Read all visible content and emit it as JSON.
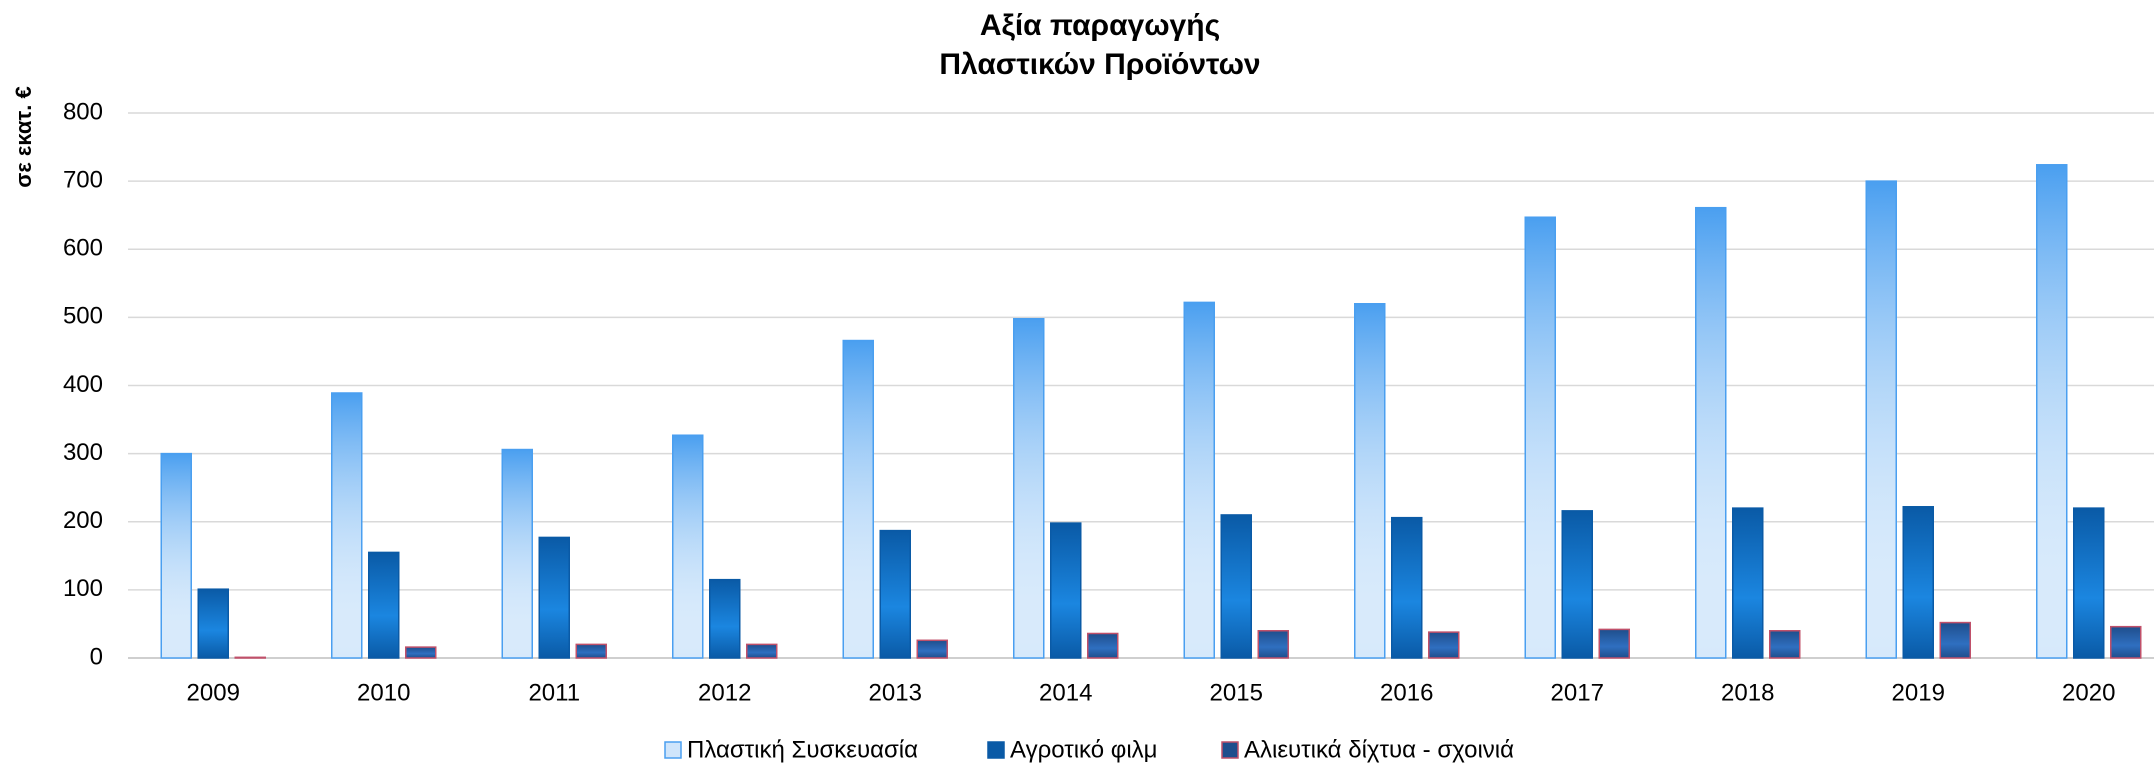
{
  "chart_data": {
    "type": "bar",
    "title": [
      "Αξία παραγωγής",
      "Πλαστικών Προϊόντων"
    ],
    "y_label": "σε εκατ. €",
    "categories": [
      "2009",
      "2010",
      "2011",
      "2012",
      "2013",
      "2014",
      "2015",
      "2016",
      "2017",
      "2018",
      "2019",
      "2020"
    ],
    "series": [
      {
        "name": "Πλαστική Συσκευασία",
        "color": "#4a9ff0",
        "values": [
          300,
          389,
          306,
          327,
          466,
          498,
          522,
          520,
          647,
          661,
          700,
          724
        ]
      },
      {
        "name": "Αγροτικό φιλμ",
        "color": "#0a5aa6",
        "values": [
          101,
          155,
          177,
          115,
          187,
          198,
          210,
          206,
          216,
          220,
          222,
          220
        ]
      },
      {
        "name": "Αλιευτικά δίχτυα - σχοινιά",
        "color": "#1f4e8c",
        "values": [
          1,
          16,
          20,
          20,
          26,
          36,
          40,
          38,
          42,
          40,
          52,
          46
        ]
      }
    ],
    "ylim": [
      0,
      800
    ],
    "yticks": [
      0,
      100,
      200,
      300,
      400,
      500,
      600,
      700,
      800
    ],
    "grid": true,
    "legend": "bottom"
  }
}
